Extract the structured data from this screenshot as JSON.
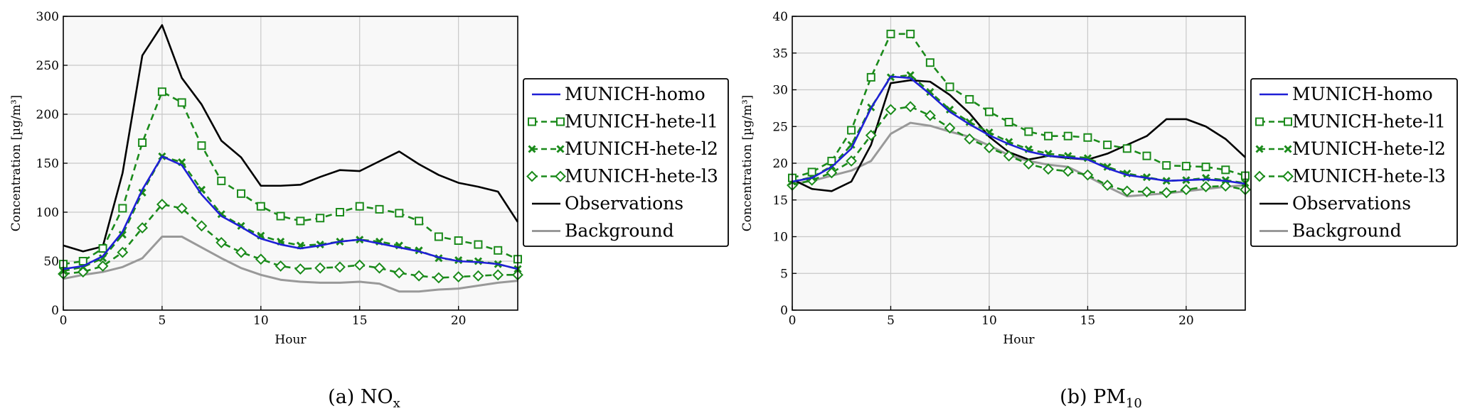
{
  "chart_data": [
    {
      "type": "line",
      "caption": "(a) NOx",
      "caption_parts": {
        "pre": "(a) NO",
        "sub": "x"
      },
      "xlabel": "Hour",
      "ylabel": "Concentration [µg/m³]",
      "xlim": [
        0,
        23
      ],
      "ylim": [
        0,
        300
      ],
      "xticks": [
        0,
        5,
        10,
        15,
        20
      ],
      "yticks": [
        0,
        50,
        100,
        150,
        200,
        250,
        300
      ],
      "grid": true,
      "legend_position": "right",
      "x": [
        0,
        1,
        2,
        3,
        4,
        5,
        6,
        7,
        8,
        9,
        10,
        11,
        12,
        13,
        14,
        15,
        16,
        17,
        18,
        19,
        20,
        21,
        22,
        23
      ],
      "series": [
        {
          "name": "MUNICH-homo",
          "color": "#1f1fd6",
          "marker": "none",
          "dash": "solid",
          "values": [
            42,
            45,
            55,
            80,
            123,
            157,
            148,
            118,
            96,
            85,
            73,
            67,
            63,
            66,
            70,
            72,
            68,
            64,
            60,
            54,
            50,
            49,
            47,
            42
          ]
        },
        {
          "name": "MUNICH-hete-l1",
          "color": "#1a8a1a",
          "marker": "square",
          "dash": "dashed",
          "values": [
            47,
            50,
            63,
            104,
            171,
            223,
            212,
            168,
            132,
            119,
            106,
            96,
            91,
            94,
            100,
            106,
            103,
            99,
            91,
            75,
            71,
            67,
            61,
            52
          ]
        },
        {
          "name": "MUNICH-hete-l2",
          "color": "#1a8a1a",
          "marker": "x",
          "dash": "dashed",
          "values": [
            40,
            44,
            53,
            77,
            120,
            157,
            151,
            123,
            98,
            86,
            76,
            70,
            66,
            67,
            70,
            72,
            70,
            66,
            61,
            53,
            51,
            50,
            47,
            42
          ]
        },
        {
          "name": "MUNICH-hete-l3",
          "color": "#1a8a1a",
          "marker": "diamond",
          "dash": "dashed",
          "values": [
            37,
            39,
            45,
            59,
            84,
            108,
            104,
            86,
            69,
            59,
            52,
            45,
            42,
            43,
            44,
            46,
            43,
            38,
            35,
            33,
            34,
            35,
            36,
            36
          ]
        },
        {
          "name": "Observations",
          "color": "#000000",
          "marker": "none",
          "dash": "solid",
          "values": [
            66,
            60,
            65,
            140,
            260,
            291,
            237,
            210,
            173,
            156,
            127,
            127,
            128,
            136,
            143,
            142,
            152,
            162,
            149,
            138,
            130,
            126,
            121,
            90
          ]
        },
        {
          "name": "Background",
          "color": "#999999",
          "marker": "none",
          "dash": "solid",
          "values": [
            32,
            36,
            39,
            44,
            53,
            75,
            75,
            64,
            53,
            43,
            36,
            31,
            29,
            28,
            28,
            29,
            27,
            19,
            19,
            21,
            22,
            25,
            28,
            30
          ]
        }
      ]
    },
    {
      "type": "line",
      "caption": "(b) PM10",
      "caption_parts": {
        "pre": "(b) PM",
        "sub": "10"
      },
      "xlabel": "Hour",
      "ylabel": "Concentration [µg/m³]",
      "xlim": [
        0,
        23
      ],
      "ylim": [
        0,
        40
      ],
      "xticks": [
        0,
        5,
        10,
        15,
        20
      ],
      "yticks": [
        0,
        5,
        10,
        15,
        20,
        25,
        30,
        35,
        40
      ],
      "grid": true,
      "legend_position": "right",
      "x": [
        0,
        1,
        2,
        3,
        4,
        5,
        6,
        7,
        8,
        9,
        10,
        11,
        12,
        13,
        14,
        15,
        16,
        17,
        18,
        19,
        20,
        21,
        22,
        23
      ],
      "series": [
        {
          "name": "MUNICH-homo",
          "color": "#1f1fd6",
          "marker": "none",
          "dash": "solid",
          "values": [
            17.5,
            18.0,
            19.5,
            22.0,
            27.5,
            31.8,
            31.6,
            29.4,
            27.0,
            25.3,
            23.8,
            22.6,
            21.6,
            21.0,
            20.8,
            20.5,
            19.3,
            18.4,
            18.0,
            17.6,
            17.7,
            17.8,
            17.6,
            17.2
          ]
        },
        {
          "name": "MUNICH-hete-l1",
          "color": "#1a8a1a",
          "marker": "square",
          "dash": "dashed",
          "values": [
            18.0,
            18.8,
            20.3,
            24.5,
            31.7,
            37.6,
            37.6,
            33.7,
            30.4,
            28.7,
            27.0,
            25.6,
            24.3,
            23.7,
            23.7,
            23.5,
            22.5,
            22.0,
            21.0,
            19.7,
            19.6,
            19.5,
            19.1,
            18.3
          ]
        },
        {
          "name": "MUNICH-hete-l2",
          "color": "#1a8a1a",
          "marker": "x",
          "dash": "dashed",
          "values": [
            17.5,
            18.1,
            19.6,
            22.5,
            27.6,
            31.7,
            32.0,
            29.7,
            27.3,
            25.6,
            24.2,
            22.9,
            21.9,
            21.3,
            21.0,
            20.7,
            19.5,
            18.6,
            18.1,
            17.6,
            17.7,
            18.0,
            17.7,
            17.3
          ]
        },
        {
          "name": "MUNICH-hete-l3",
          "color": "#1a8a1a",
          "marker": "diamond",
          "dash": "dashed",
          "values": [
            17.0,
            17.7,
            18.7,
            20.3,
            23.8,
            27.3,
            27.7,
            26.5,
            24.8,
            23.3,
            22.1,
            21.0,
            19.9,
            19.2,
            18.9,
            18.4,
            17.0,
            16.2,
            16.1,
            16.0,
            16.4,
            16.8,
            16.9,
            16.4
          ]
        },
        {
          "name": "Observations",
          "color": "#000000",
          "marker": "none",
          "dash": "solid",
          "values": [
            17.8,
            16.5,
            16.2,
            17.5,
            22.5,
            30.9,
            31.3,
            31.1,
            29.3,
            26.8,
            23.6,
            21.5,
            20.5,
            21.0,
            20.7,
            20.5,
            21.3,
            22.5,
            23.7,
            26.0,
            26.0,
            25.0,
            23.3,
            20.8
          ]
        },
        {
          "name": "Background",
          "color": "#999999",
          "marker": "none",
          "dash": "solid",
          "values": [
            17.2,
            17.6,
            18.3,
            19.0,
            20.3,
            24.0,
            25.5,
            25.1,
            24.3,
            23.6,
            22.4,
            21.1,
            20.3,
            19.8,
            19.5,
            18.2,
            16.8,
            15.5,
            15.7,
            15.9,
            16.2,
            16.5,
            16.8,
            17.0
          ]
        }
      ]
    }
  ]
}
